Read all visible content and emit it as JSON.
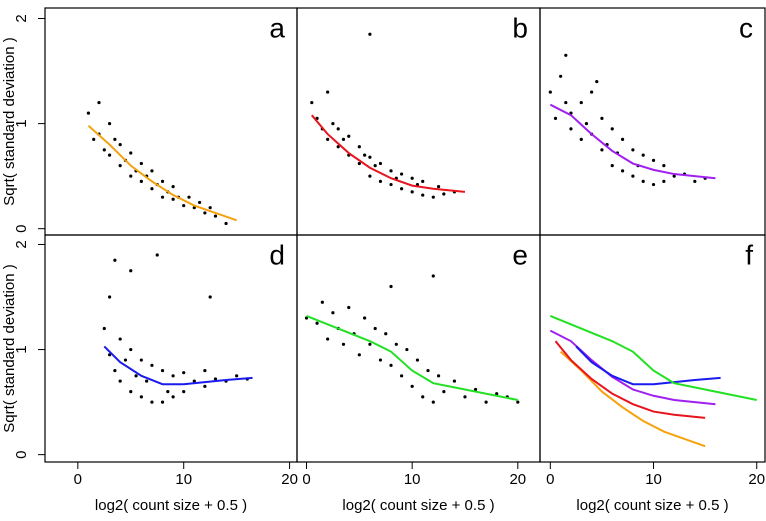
{
  "chart_data": [
    {
      "type": "scatter",
      "label": "a",
      "xlim": [
        -3.1,
        20.7
      ],
      "ylim": [
        -0.06,
        2.1
      ],
      "yticks": [
        0,
        1,
        2
      ],
      "ylabel": "Sqrt( standard deviation )",
      "points": {
        "color": "#000000",
        "x": [
          1,
          1.5,
          2,
          2,
          2.5,
          3,
          3,
          3.5,
          4,
          4,
          4.5,
          5,
          5,
          5.5,
          6,
          6,
          6.5,
          7,
          7,
          7.5,
          8,
          8,
          8.5,
          9,
          9,
          9.5,
          10,
          10.5,
          11,
          11.5,
          12,
          12.5,
          13,
          14
        ],
        "y": [
          1.1,
          0.85,
          1.2,
          0.9,
          0.75,
          1.0,
          0.7,
          0.85,
          0.6,
          0.8,
          0.65,
          0.5,
          0.72,
          0.55,
          0.45,
          0.62,
          0.5,
          0.38,
          0.55,
          0.42,
          0.3,
          0.45,
          0.35,
          0.28,
          0.4,
          0.3,
          0.22,
          0.3,
          0.2,
          0.25,
          0.15,
          0.2,
          0.12,
          0.05
        ]
      },
      "fit": {
        "color": "#f5a20f",
        "x": [
          1,
          3,
          5,
          7,
          9,
          11,
          13,
          15
        ],
        "y": [
          0.98,
          0.8,
          0.6,
          0.45,
          0.32,
          0.22,
          0.15,
          0.08
        ]
      }
    },
    {
      "type": "scatter",
      "label": "b",
      "xlim": [
        -0.9,
        22.1
      ],
      "ylim": [
        -0.06,
        2.1
      ],
      "points": {
        "color": "#000000",
        "x": [
          0.5,
          1,
          1.5,
          2,
          2,
          2.5,
          3,
          3,
          3.5,
          4,
          4,
          5,
          5,
          5.5,
          6,
          6,
          6.5,
          7,
          7,
          8,
          8,
          8.5,
          9,
          9,
          10,
          10,
          10.5,
          11,
          11,
          12,
          12.5,
          13,
          14,
          6
        ],
        "y": [
          1.2,
          1.05,
          0.95,
          1.3,
          0.85,
          1.0,
          0.78,
          0.95,
          0.85,
          0.7,
          0.88,
          0.62,
          0.78,
          0.7,
          0.5,
          0.68,
          0.6,
          0.45,
          0.62,
          0.42,
          0.55,
          0.48,
          0.38,
          0.52,
          0.35,
          0.48,
          0.42,
          0.32,
          0.45,
          0.3,
          0.4,
          0.33,
          0.35,
          1.85
        ]
      },
      "fit": {
        "color": "#e8141e",
        "x": [
          0.5,
          2,
          4,
          6,
          8,
          10,
          12,
          15
        ],
        "y": [
          1.08,
          0.9,
          0.72,
          0.58,
          0.48,
          0.41,
          0.38,
          0.35
        ]
      }
    },
    {
      "type": "scatter",
      "label": "c",
      "xlim": [
        -1,
        20.8
      ],
      "ylim": [
        -0.06,
        2.1
      ],
      "points": {
        "color": "#000000",
        "x": [
          0,
          0.5,
          1,
          1.5,
          2,
          2,
          3,
          3,
          3.5,
          4,
          4,
          5,
          5,
          5.5,
          6,
          6,
          6.5,
          7,
          7,
          8,
          8,
          8.5,
          9,
          9,
          10,
          10,
          11,
          11,
          12,
          13,
          14,
          15,
          1.5,
          4.5
        ],
        "y": [
          1.3,
          1.05,
          1.45,
          1.2,
          1.1,
          0.95,
          1.2,
          0.85,
          1.0,
          0.9,
          1.3,
          0.75,
          1.05,
          0.8,
          0.6,
          0.95,
          0.72,
          0.55,
          0.85,
          0.5,
          0.75,
          0.6,
          0.45,
          0.7,
          0.42,
          0.65,
          0.45,
          0.6,
          0.5,
          0.52,
          0.45,
          0.48,
          1.65,
          1.4
        ]
      },
      "fit": {
        "color": "#a020f0",
        "x": [
          0,
          2,
          4,
          6,
          8,
          10,
          12,
          16
        ],
        "y": [
          1.18,
          1.08,
          0.9,
          0.74,
          0.62,
          0.56,
          0.52,
          0.48
        ]
      }
    },
    {
      "type": "scatter",
      "label": "d",
      "xlim": [
        -3.1,
        20.7
      ],
      "ylim": [
        -0.07,
        2.09
      ],
      "xticks": [
        0,
        10,
        20
      ],
      "yticks": [
        0,
        1,
        2
      ],
      "xlabel": "log2( count size + 0.5 )",
      "ylabel": "Sqrt( standard deviation )",
      "points": {
        "color": "#000000",
        "x": [
          2.5,
          3,
          3,
          3.5,
          4,
          4,
          4.5,
          5,
          5,
          5.5,
          6,
          6,
          6.5,
          7,
          7,
          8,
          8,
          8.5,
          9,
          9,
          10,
          10,
          11,
          12,
          12,
          13,
          14,
          15,
          16,
          3.5,
          5,
          7.5,
          12.5
        ],
        "y": [
          1.2,
          0.95,
          1.5,
          0.8,
          1.1,
          0.7,
          0.9,
          0.6,
          1.0,
          0.75,
          0.55,
          0.9,
          0.7,
          0.5,
          0.85,
          0.5,
          0.8,
          0.6,
          0.55,
          0.75,
          0.6,
          0.78,
          0.7,
          0.65,
          0.8,
          0.72,
          0.7,
          0.75,
          0.72,
          1.85,
          1.75,
          1.9,
          1.5
        ]
      },
      "fit": {
        "color": "#1a1aee",
        "x": [
          2.5,
          4,
          6,
          8,
          10,
          12,
          14,
          16.5
        ],
        "y": [
          1.03,
          0.88,
          0.75,
          0.67,
          0.67,
          0.69,
          0.71,
          0.73
        ]
      }
    },
    {
      "type": "scatter",
      "label": "e",
      "xlim": [
        -0.9,
        22.1
      ],
      "ylim": [
        -0.07,
        2.09
      ],
      "xticks": [
        0,
        10,
        20
      ],
      "xlabel": "log2( count size + 0.5 )",
      "points": {
        "color": "#000000",
        "x": [
          0,
          1,
          1.5,
          2,
          2.5,
          3,
          3.5,
          4,
          4.5,
          5,
          5.5,
          6,
          6.5,
          7,
          7.5,
          8,
          8.5,
          9,
          9.5,
          10,
          10.5,
          11,
          11.5,
          12,
          12.5,
          13,
          14,
          15,
          16,
          17,
          18,
          19,
          20,
          8,
          12
        ],
        "y": [
          1.3,
          1.25,
          1.45,
          1.1,
          1.35,
          1.2,
          1.05,
          1.4,
          1.15,
          0.95,
          1.3,
          1.05,
          1.2,
          0.9,
          1.15,
          0.85,
          1.05,
          0.75,
          1.0,
          0.65,
          0.9,
          0.55,
          0.8,
          0.5,
          0.75,
          0.6,
          0.7,
          0.55,
          0.62,
          0.5,
          0.58,
          0.55,
          0.5,
          1.6,
          1.7
        ]
      },
      "fit": {
        "color": "#22e022",
        "x": [
          0,
          3,
          6,
          8,
          10,
          12,
          15,
          20
        ],
        "y": [
          1.32,
          1.2,
          1.08,
          0.98,
          0.8,
          0.68,
          0.62,
          0.52
        ]
      }
    },
    {
      "type": "line",
      "label": "f",
      "xlim": [
        -1,
        20.8
      ],
      "ylim": [
        -0.07,
        2.09
      ],
      "xticks": [
        0,
        10,
        20
      ],
      "xlabel": "log2( count size + 0.5 )",
      "series": [
        {
          "color": "#f5a20f",
          "x": [
            1,
            3,
            5,
            7,
            9,
            11,
            13,
            15
          ],
          "y": [
            0.98,
            0.8,
            0.6,
            0.45,
            0.32,
            0.22,
            0.15,
            0.08
          ]
        },
        {
          "color": "#e8141e",
          "x": [
            0.5,
            2,
            4,
            6,
            8,
            10,
            12,
            15
          ],
          "y": [
            1.08,
            0.9,
            0.72,
            0.58,
            0.48,
            0.41,
            0.38,
            0.35
          ]
        },
        {
          "color": "#a020f0",
          "x": [
            0,
            2,
            4,
            6,
            8,
            10,
            12,
            16
          ],
          "y": [
            1.18,
            1.08,
            0.9,
            0.74,
            0.62,
            0.56,
            0.52,
            0.48
          ]
        },
        {
          "color": "#1a1aee",
          "x": [
            2.5,
            4,
            6,
            8,
            10,
            12,
            14,
            16.5
          ],
          "y": [
            1.03,
            0.88,
            0.75,
            0.67,
            0.67,
            0.69,
            0.71,
            0.73
          ]
        },
        {
          "color": "#22e022",
          "x": [
            0,
            3,
            6,
            8,
            10,
            12,
            15,
            20
          ],
          "y": [
            1.32,
            1.2,
            1.08,
            0.98,
            0.8,
            0.68,
            0.62,
            0.52
          ]
        }
      ]
    }
  ]
}
